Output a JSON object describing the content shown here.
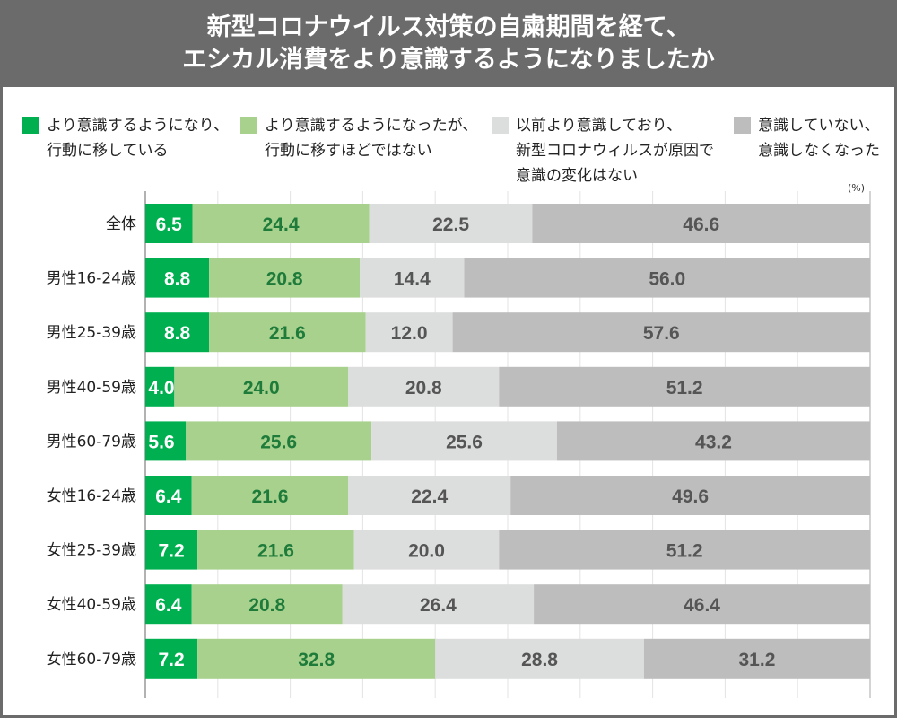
{
  "chart_data": {
    "type": "bar",
    "orientation": "horizontal",
    "stacked": true,
    "title": "新型コロナウイルス対策の自粛期間を経て、\nエシカル消費をより意識するようになりましたか",
    "unit": "(%)",
    "xlim": [
      0,
      100
    ],
    "grid": true,
    "legend_placement": "top",
    "categories": [
      "全体",
      "男性16-24歳",
      "男性25-39歳",
      "男性40-59歳",
      "男性60-79歳",
      "女性16-24歳",
      "女性25-39歳",
      "女性40-59歳",
      "女性60-79歳"
    ],
    "series": [
      {
        "name": "より意識するようになり、\n行動に移している",
        "color": "#00b050",
        "label_color": "#ffffff",
        "values": [
          6.5,
          8.8,
          8.8,
          4.0,
          5.6,
          6.4,
          7.2,
          6.4,
          7.2
        ]
      },
      {
        "name": "より意識するようになったが、\n行動に移すほどではない",
        "color": "#a9d18e",
        "label_color": "#1e7b3a",
        "values": [
          24.4,
          20.8,
          21.6,
          24.0,
          25.6,
          21.6,
          21.6,
          20.8,
          32.8
        ]
      },
      {
        "name": "以前より意識しており、\n新型コロナウィルスが原因で\n意識の変化はない",
        "color": "#dcdddd",
        "label_color": "#555555",
        "values": [
          22.5,
          14.4,
          12.0,
          20.8,
          25.6,
          22.4,
          20.0,
          26.4,
          28.8
        ]
      },
      {
        "name": "意識していない、\n意識しなくなった",
        "color": "#bdbdbd",
        "label_color": "#555555",
        "values": [
          46.6,
          56.0,
          57.6,
          51.2,
          43.2,
          49.6,
          51.2,
          46.4,
          31.2
        ]
      }
    ]
  }
}
